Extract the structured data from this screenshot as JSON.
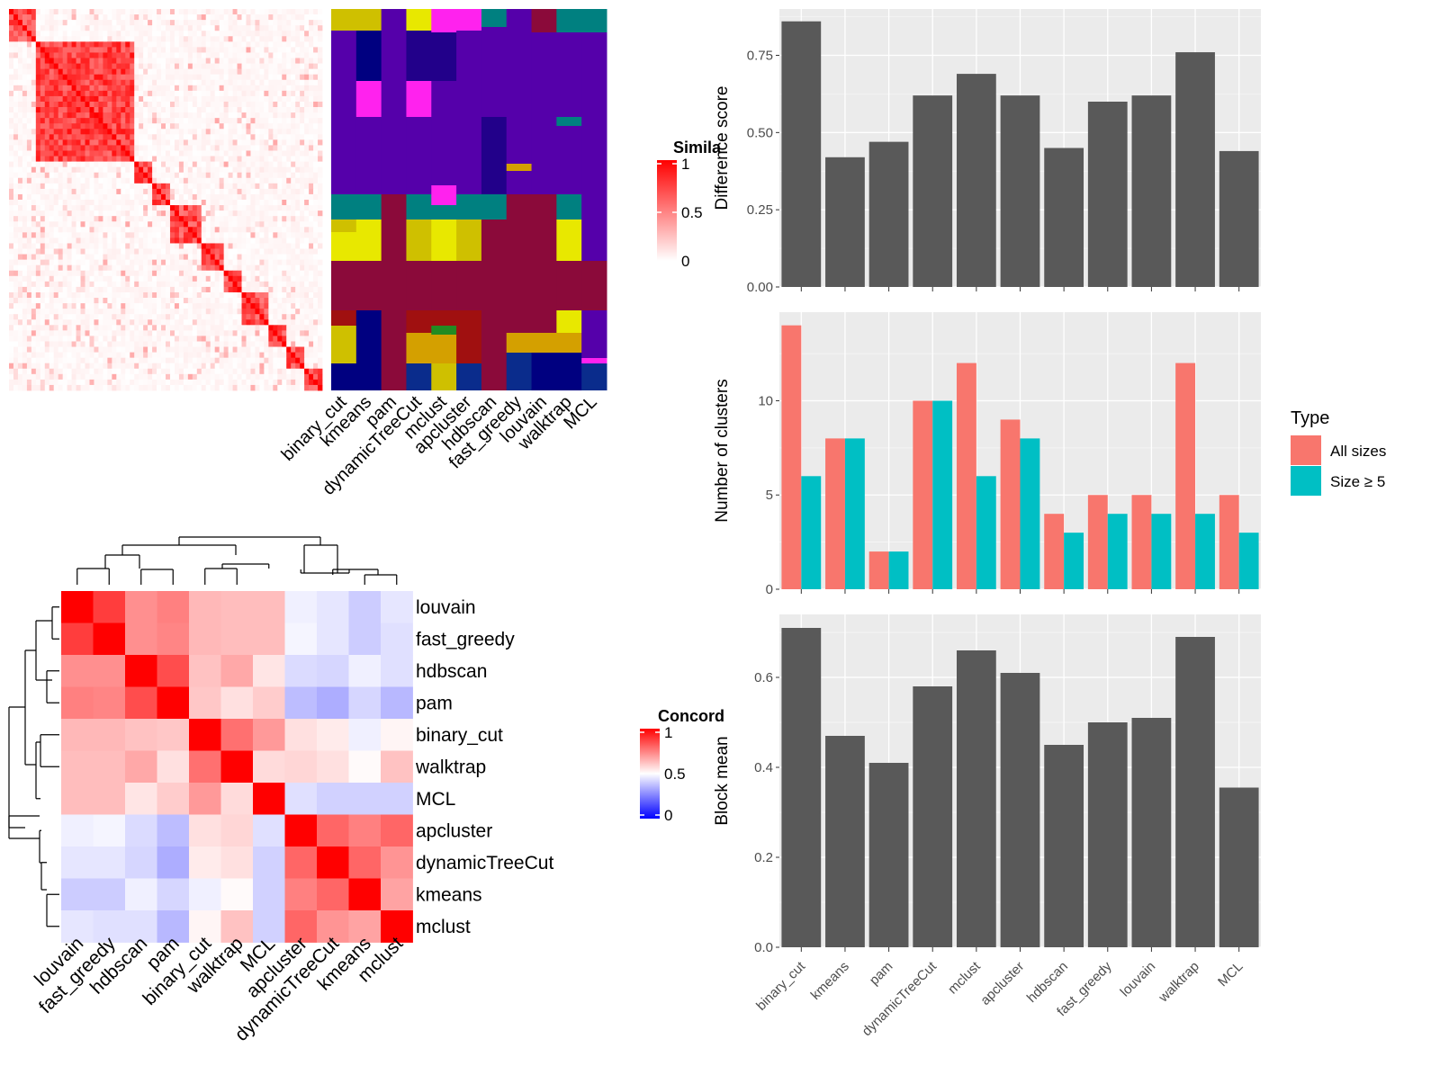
{
  "methods": [
    "binary_cut",
    "kmeans",
    "pam",
    "dynamicTreeCut",
    "mclust",
    "apcluster",
    "hdbscan",
    "fast_greedy",
    "louvain",
    "walktrap",
    "MCL"
  ],
  "similarity_heatmap": {
    "legend_title": "Simila",
    "legend_ticks": [
      "1",
      "0.5",
      "0"
    ],
    "colors": {
      "high": "#ff0000",
      "low": "#ffffff"
    }
  },
  "partition_colors": {
    "purple": "#5500aa",
    "navy": "#000080",
    "indigo": "#22008a",
    "magenta": "#ff22ee",
    "teal": "#008080",
    "crimson": "#8b0a3a",
    "yellow": "#e8e800",
    "olive": "#cfc000",
    "gold": "#d4a000",
    "green": "#228b22",
    "darkred": "#a01010",
    "blue": "#0a2c8c"
  },
  "concordance_heatmap": {
    "legend_title": "Concord",
    "legend_ticks": [
      "1",
      "0.5",
      "0"
    ],
    "order": [
      "louvain",
      "fast_greedy",
      "hdbscan",
      "pam",
      "binary_cut",
      "walktrap",
      "MCL",
      "apcluster",
      "dynamicTreeCut",
      "kmeans",
      "mclust"
    ],
    "colors": {
      "high": "#ff0000",
      "mid": "#ffffff",
      "low": "#0000ff"
    }
  },
  "chart_data": [
    {
      "type": "bar",
      "categories": [
        "binary_cut",
        "kmeans",
        "pam",
        "dynamicTreeCut",
        "mclust",
        "apcluster",
        "hdbscan",
        "fast_greedy",
        "louvain",
        "walktrap",
        "MCL"
      ],
      "values": [
        0.86,
        0.42,
        0.47,
        0.62,
        0.69,
        0.62,
        0.45,
        0.6,
        0.62,
        0.76,
        0.44
      ],
      "ylabel": "Difference score",
      "ylim": [
        0,
        0.9
      ],
      "yticks": [
        "0.00",
        "0.25",
        "0.50",
        "0.75"
      ],
      "grid": true
    },
    {
      "type": "bar",
      "categories": [
        "binary_cut",
        "kmeans",
        "pam",
        "dynamicTreeCut",
        "mclust",
        "apcluster",
        "hdbscan",
        "fast_greedy",
        "louvain",
        "walktrap",
        "MCL"
      ],
      "series": [
        {
          "name": "All sizes",
          "values": [
            14,
            8,
            2,
            10,
            12,
            9,
            4,
            5,
            5,
            12,
            5
          ],
          "color": "#f8766d"
        },
        {
          "name": "Size ≥ 5",
          "values": [
            6,
            8,
            2,
            10,
            6,
            8,
            3,
            4,
            4,
            4,
            3
          ],
          "color": "#00bfc4"
        }
      ],
      "ylabel": "Number of clusters",
      "ylim": [
        0,
        14.7
      ],
      "yticks": [
        "0",
        "5",
        "10"
      ],
      "legend_title": "Type",
      "legend_position": "right",
      "grid": true
    },
    {
      "type": "bar",
      "categories": [
        "binary_cut",
        "kmeans",
        "pam",
        "dynamicTreeCut",
        "mclust",
        "apcluster",
        "hdbscan",
        "fast_greedy",
        "louvain",
        "walktrap",
        "MCL"
      ],
      "values": [
        0.71,
        0.47,
        0.41,
        0.58,
        0.66,
        0.61,
        0.45,
        0.5,
        0.51,
        0.69,
        0.355
      ],
      "ylabel": "Block mean",
      "ylim": [
        0,
        0.74
      ],
      "yticks": [
        "0.0",
        "0.2",
        "0.4",
        "0.6"
      ],
      "grid": true
    }
  ]
}
